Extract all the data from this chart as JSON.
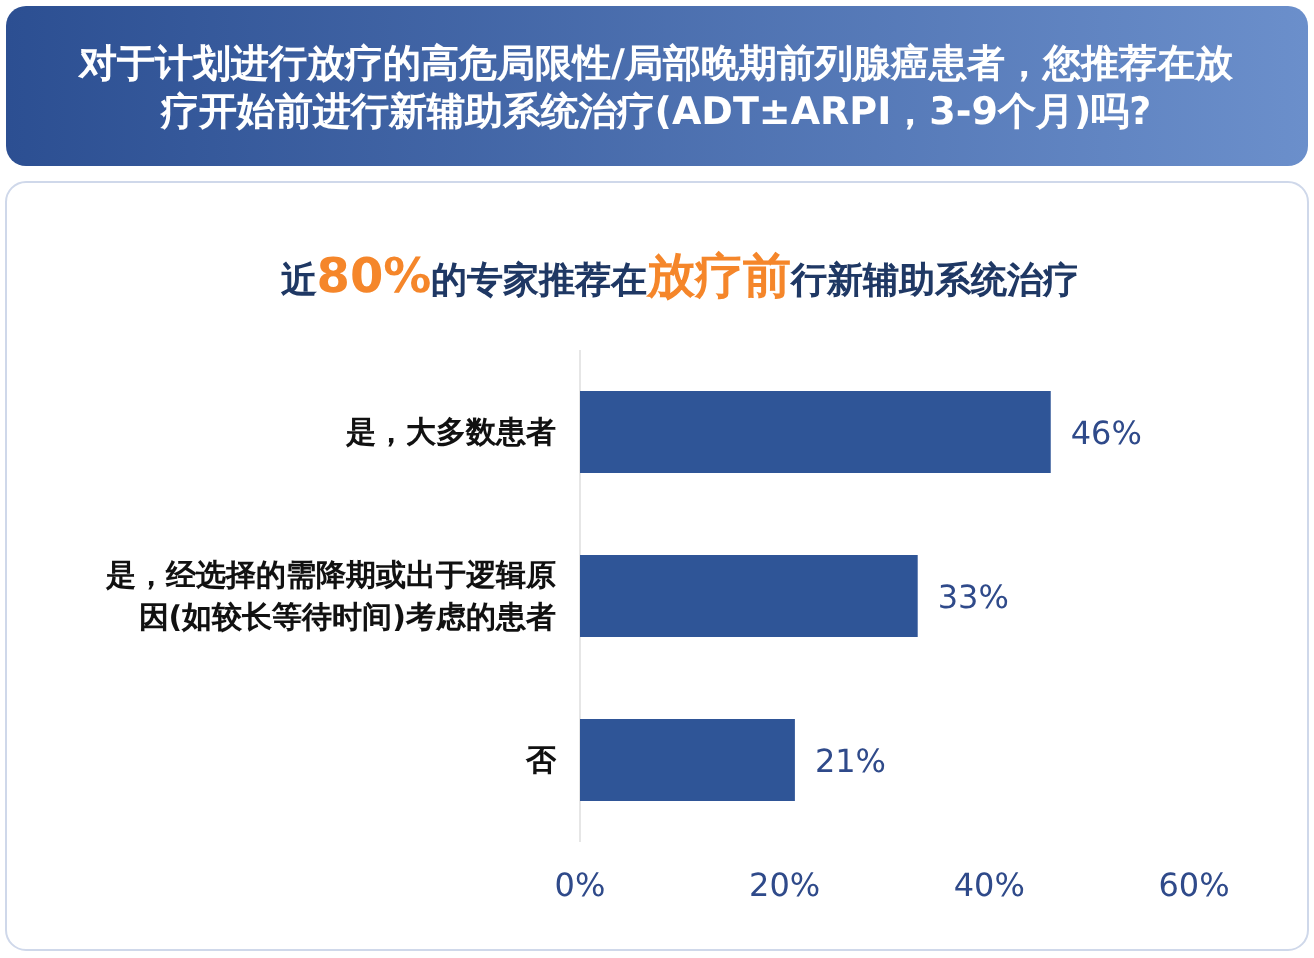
{
  "chart_data": {
    "type": "bar",
    "orientation": "horizontal",
    "title": "对于计划进行放疗的高危局限性/局部晚期前列腺癌患者，您推荐在放疗开始前进行新辅助系统治疗(ADT±ARPI，3-9个月)吗?",
    "subtitle": "近**80%**的专家推荐在**放疗前**行新辅助系统治疗",
    "categories": [
      "是，大多数患者",
      "是，经选择的需降期或出于逻辑原因(如较长等待时间)考虑的患者",
      "否"
    ],
    "values": [
      46,
      33,
      21
    ],
    "value_labels": [
      "46%",
      "33%",
      "21%"
    ],
    "color": "#2f5597",
    "xlim": [
      0,
      60
    ],
    "xticks": [
      {
        "value": 0,
        "label": "0%"
      },
      {
        "value": 20,
        "label": "20%"
      },
      {
        "value": 40,
        "label": "40%"
      },
      {
        "value": 60,
        "label": "60%"
      }
    ],
    "grid": false
  }
}
